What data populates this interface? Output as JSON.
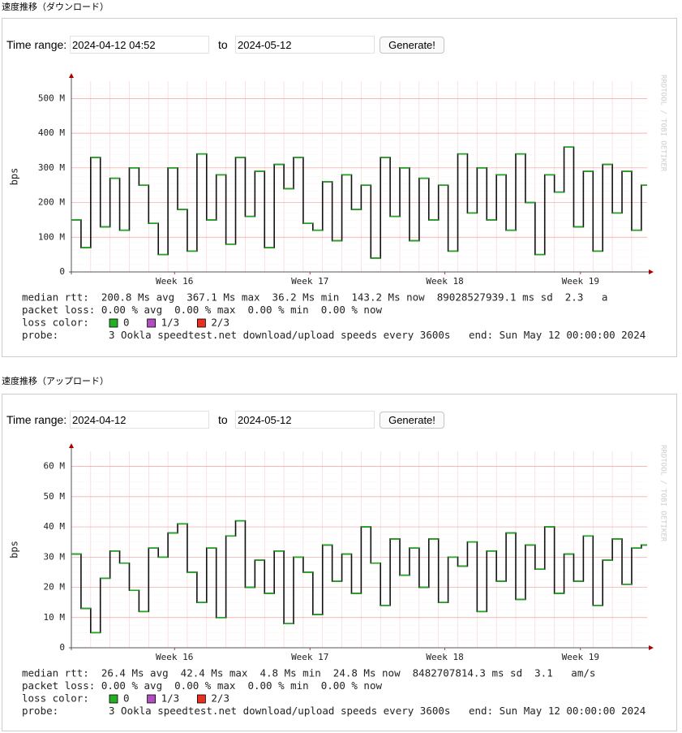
{
  "sections": [
    {
      "heading": "速度推移（ダウンロード）",
      "time_range_label": "Time range:",
      "from": "2024-04-12 04:52",
      "to_label": "to",
      "to": "2024-05-12",
      "button": "Generate!"
    },
    {
      "heading": "速度推移（アップロード）",
      "time_range_label": "Time range:",
      "from": "2024-04-12",
      "to_label": "to",
      "to": "2024-05-12",
      "button": "Generate!"
    }
  ],
  "chart_data": [
    {
      "type": "line",
      "ylabel": "bps",
      "watermark": "RRDTOOL / TOBI OETIKER",
      "color": "#111111",
      "segment_color": "#1fa81f",
      "grid": true,
      "xlim": [
        0,
        29.8
      ],
      "xticks": [
        {
          "value": 5.34,
          "label": "Week 16"
        },
        {
          "value": 12.35,
          "label": "Week 17"
        },
        {
          "value": 19.33,
          "label": "Week 18"
        },
        {
          "value": 26.35,
          "label": "Week 19"
        }
      ],
      "ylim": [
        0,
        550
      ],
      "yticks": [
        0,
        {
          "value": 100,
          "label": "100 M"
        },
        {
          "value": 200,
          "label": "200 M"
        },
        {
          "value": 300,
          "label": "300 M"
        },
        {
          "value": 400,
          "label": "400 M"
        },
        {
          "value": 500,
          "label": "500 M"
        }
      ],
      "x": [
        0,
        0.5,
        1,
        1.5,
        2,
        2.5,
        3,
        3.5,
        4,
        4.5,
        5,
        5.5,
        6,
        6.5,
        7,
        7.5,
        8,
        8.5,
        9,
        9.5,
        10,
        10.5,
        11,
        11.5,
        12,
        12.5,
        13,
        13.5,
        14,
        14.5,
        15,
        15.5,
        16,
        16.5,
        17,
        17.5,
        18,
        18.5,
        19,
        19.5,
        20,
        20.5,
        21,
        21.5,
        22,
        22.5,
        23,
        23.5,
        24,
        24.5,
        25,
        25.5,
        26,
        26.5,
        27,
        27.5,
        28,
        28.5,
        29,
        29.5
      ],
      "values": [
        150,
        70,
        330,
        130,
        270,
        120,
        300,
        250,
        140,
        50,
        300,
        180,
        60,
        340,
        150,
        280,
        80,
        330,
        160,
        290,
        70,
        310,
        240,
        330,
        140,
        120,
        260,
        90,
        280,
        180,
        250,
        40,
        330,
        160,
        300,
        90,
        270,
        150,
        250,
        60,
        340,
        170,
        300,
        150,
        280,
        120,
        340,
        200,
        50,
        280,
        230,
        360,
        130,
        290,
        60,
        310,
        170,
        290,
        120,
        250
      ],
      "stats": [
        "median rtt:  200.8 Ms avg  367.1 Ms max  36.2 Ms min  143.2 Ms now  89028527939.1 ms sd  2.3   a",
        "packet loss: 0.00 % avg  0.00 % max  0.00 % min  0.00 % now"
      ],
      "loss_legend": {
        "label": "loss color:",
        "items": [
          {
            "label": "0",
            "color": "#22b022"
          },
          {
            "label": "1/3",
            "color": "#b050c0"
          },
          {
            "label": "2/3",
            "color": "#e83020"
          }
        ]
      },
      "probe_label": "probe:",
      "probe": "3 Ookla speedtest.net download/upload speeds every 3600s",
      "end": "end: Sun May 12 00:00:00 2024"
    },
    {
      "type": "line",
      "ylabel": "bps",
      "watermark": "RRDTOOL / TOBI OETIKER",
      "color": "#111111",
      "segment_color": "#1fa81f",
      "grid": true,
      "xlim": [
        0,
        29.8
      ],
      "xticks": [
        {
          "value": 5.34,
          "label": "Week 16"
        },
        {
          "value": 12.35,
          "label": "Week 17"
        },
        {
          "value": 19.33,
          "label": "Week 18"
        },
        {
          "value": 26.35,
          "label": "Week 19"
        }
      ],
      "ylim": [
        0,
        65
      ],
      "yticks": [
        0,
        {
          "value": 10,
          "label": "10 M"
        },
        {
          "value": 20,
          "label": "20 M"
        },
        {
          "value": 30,
          "label": "30 M"
        },
        {
          "value": 40,
          "label": "40 M"
        },
        {
          "value": 50,
          "label": "50 M"
        },
        {
          "value": 60,
          "label": "60 M"
        }
      ],
      "x": [
        0,
        0.5,
        1,
        1.5,
        2,
        2.5,
        3,
        3.5,
        4,
        4.5,
        5,
        5.5,
        6,
        6.5,
        7,
        7.5,
        8,
        8.5,
        9,
        9.5,
        10,
        10.5,
        11,
        11.5,
        12,
        12.5,
        13,
        13.5,
        14,
        14.5,
        15,
        15.5,
        16,
        16.5,
        17,
        17.5,
        18,
        18.5,
        19,
        19.5,
        20,
        20.5,
        21,
        21.5,
        22,
        22.5,
        23,
        23.5,
        24,
        24.5,
        25,
        25.5,
        26,
        26.5,
        27,
        27.5,
        28,
        28.5,
        29,
        29.5
      ],
      "values": [
        31,
        13,
        5,
        23,
        32,
        28,
        19,
        12,
        33,
        30,
        38,
        41,
        25,
        15,
        33,
        10,
        37,
        42,
        20,
        29,
        18,
        32,
        8,
        30,
        25,
        11,
        34,
        22,
        31,
        18,
        40,
        28,
        14,
        36,
        24,
        33,
        20,
        36,
        15,
        30,
        27,
        35,
        12,
        32,
        22,
        38,
        16,
        34,
        26,
        40,
        18,
        31,
        22,
        37,
        14,
        29,
        36,
        21,
        33,
        34
      ],
      "stats": [
        "median rtt:  26.4 Ms avg  42.4 Ms max  4.8 Ms min  24.8 Ms now  8482707814.3 ms sd  3.1   am/s",
        "packet loss: 0.00 % avg  0.00 % max  0.00 % min  0.00 % now"
      ],
      "loss_legend": {
        "label": "loss color:",
        "items": [
          {
            "label": "0",
            "color": "#22b022"
          },
          {
            "label": "1/3",
            "color": "#b050c0"
          },
          {
            "label": "2/3",
            "color": "#e83020"
          }
        ]
      },
      "probe_label": "probe:",
      "probe": "3 Ookla speedtest.net download/upload speeds every 3600s",
      "end": "end: Sun May 12 00:00:00 2024"
    }
  ]
}
